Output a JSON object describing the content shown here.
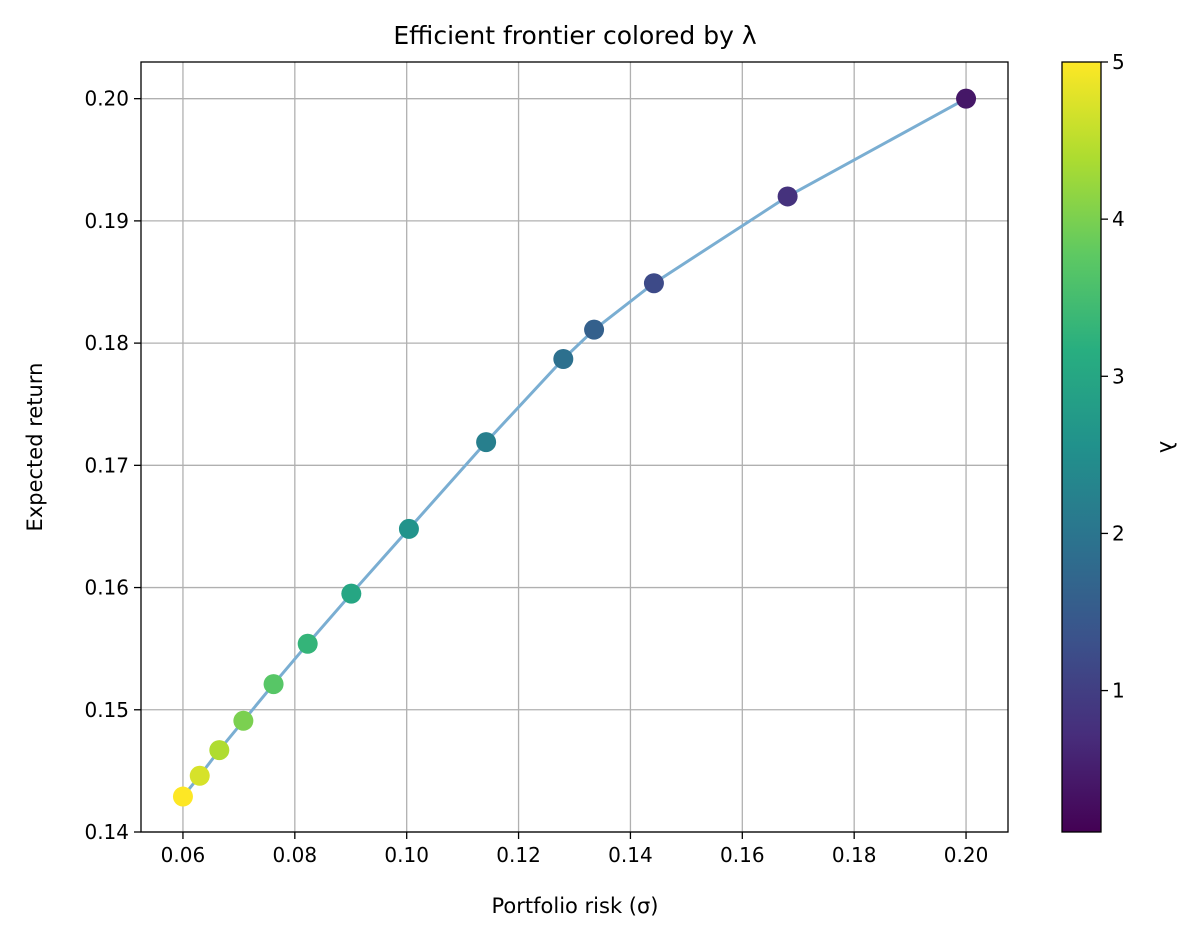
{
  "chart_data": {
    "type": "scatter",
    "title": "Efficient frontier colored by λ",
    "xlabel": "Portfolio risk (σ)",
    "ylabel": "Expected return",
    "colorbar_label": "λ",
    "xlim": [
      0.0525,
      0.2075
    ],
    "ylim": [
      0.14,
      0.203
    ],
    "xticks": [
      0.06,
      0.08,
      0.1,
      0.12,
      0.14,
      0.16,
      0.18,
      0.2
    ],
    "xtick_labels": [
      "0.06",
      "0.08",
      "0.10",
      "0.12",
      "0.14",
      "0.16",
      "0.18",
      "0.20"
    ],
    "yticks": [
      0.14,
      0.15,
      0.16,
      0.17,
      0.18,
      0.19,
      0.2
    ],
    "ytick_labels": [
      "0.14",
      "0.15",
      "0.16",
      "0.17",
      "0.18",
      "0.19",
      "0.20"
    ],
    "grid": true,
    "colormap": "viridis",
    "clim": [
      0.1,
      5
    ],
    "cticks": [
      1,
      2,
      3,
      4,
      5
    ],
    "ctick_labels": [
      "1",
      "2",
      "3",
      "4",
      "5"
    ],
    "line_color": "#7aaed2",
    "points": [
      {
        "x": 0.06,
        "y": 0.1429,
        "lambda": 5.0
      },
      {
        "x": 0.063,
        "y": 0.1446,
        "lambda": 4.7
      },
      {
        "x": 0.0665,
        "y": 0.1467,
        "lambda": 4.4
      },
      {
        "x": 0.0708,
        "y": 0.1491,
        "lambda": 4.0
      },
      {
        "x": 0.0762,
        "y": 0.1521,
        "lambda": 3.7
      },
      {
        "x": 0.0823,
        "y": 0.1554,
        "lambda": 3.3
      },
      {
        "x": 0.0901,
        "y": 0.1595,
        "lambda": 3.0
      },
      {
        "x": 0.1004,
        "y": 0.1648,
        "lambda": 2.6
      },
      {
        "x": 0.1142,
        "y": 0.1719,
        "lambda": 2.2
      },
      {
        "x": 0.128,
        "y": 0.1787,
        "lambda": 1.9
      },
      {
        "x": 0.1335,
        "y": 0.1811,
        "lambda": 1.6
      },
      {
        "x": 0.1442,
        "y": 0.1849,
        "lambda": 1.2
      },
      {
        "x": 0.1681,
        "y": 0.192,
        "lambda": 0.8
      },
      {
        "x": 0.2,
        "y": 0.2,
        "lambda": 0.4
      }
    ]
  }
}
